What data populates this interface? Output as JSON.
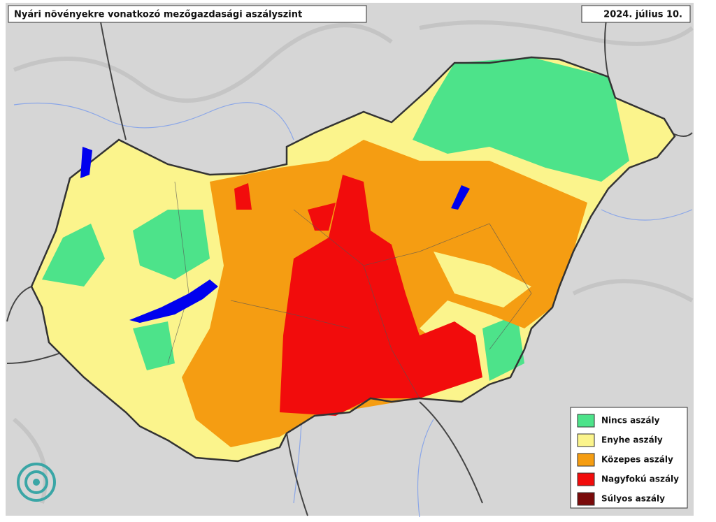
{
  "header": {
    "title": "Nyári növényekre vonatkozó mezőgazdasági aszályszint",
    "date": "2024. július 10."
  },
  "legend": {
    "items": [
      {
        "label": "Nincs aszály",
        "color": "#4de38a"
      },
      {
        "label": "Enyhe aszály",
        "color": "#fbf48c"
      },
      {
        "label": "Közepes aszály",
        "color": "#f59d12"
      },
      {
        "label": "Nagyfokú aszály",
        "color": "#f20c0c"
      },
      {
        "label": "Súlyos aszály",
        "color": "#7a0a0a"
      }
    ]
  }
}
